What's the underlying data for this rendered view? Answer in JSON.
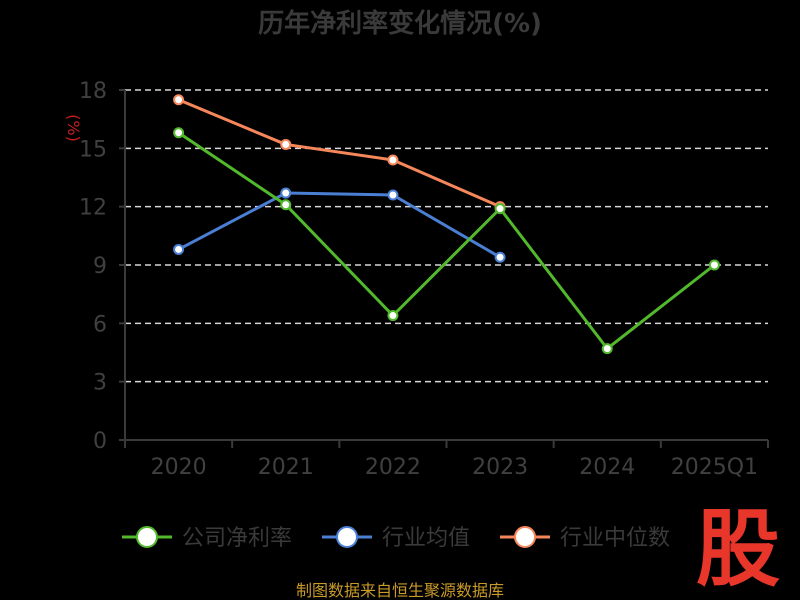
{
  "chart_data": {
    "type": "line",
    "title": "历年净利率变化情况(%)",
    "ylabel": "(%)",
    "categories": [
      "2020",
      "2021",
      "2022",
      "2023",
      "2024",
      "2025Q1"
    ],
    "ylim": [
      0,
      18
    ],
    "yticks": [
      0,
      3,
      6,
      9,
      12,
      15,
      18
    ],
    "grid": true,
    "legend_position": "bottom",
    "series": [
      {
        "name": "公司净利率",
        "color": "#52b82c",
        "values": [
          15.8,
          12.1,
          6.4,
          11.9,
          4.7,
          9.0
        ]
      },
      {
        "name": "行业均值",
        "color": "#4a7fd4",
        "values": [
          9.8,
          12.7,
          12.6,
          9.4,
          null,
          null
        ]
      },
      {
        "name": "行业中位数",
        "color": "#f5875a",
        "values": [
          17.5,
          15.2,
          14.4,
          12.0,
          null,
          null
        ]
      }
    ]
  },
  "source_text": "制图数据来自恒生聚源数据库",
  "brand_glyph": "股"
}
